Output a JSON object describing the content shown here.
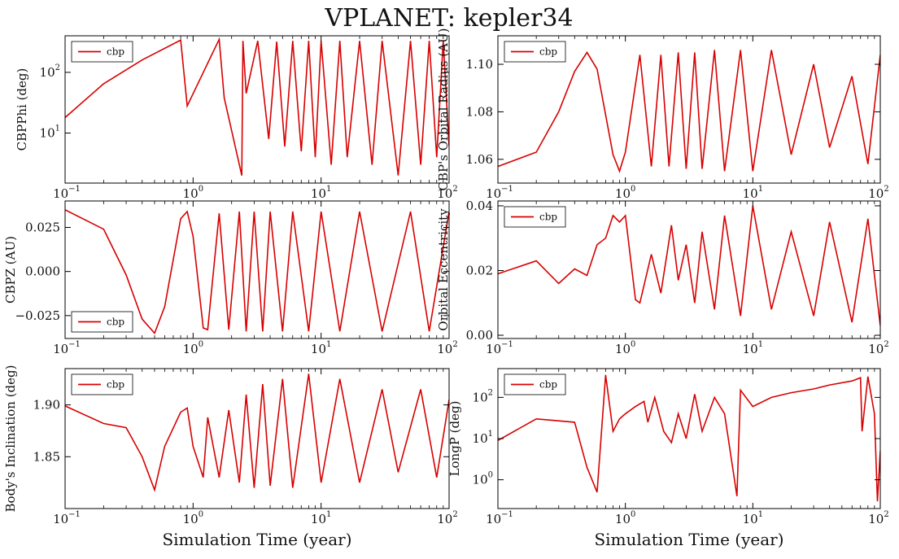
{
  "figure": {
    "title": "VPLANET: kepler34",
    "line_color": "#d80000"
  },
  "chart_data": [
    {
      "type": "line",
      "ylabel": "CBPPhi (deg)",
      "xlabel": "",
      "xscale": "log",
      "yscale": "log",
      "xlim": [
        0.1,
        100
      ],
      "ylim": [
        1.5,
        400
      ],
      "xticks": [
        "10^-1",
        "10^0",
        "10^1",
        "10^2"
      ],
      "yticks": [
        "10^1",
        "10^2"
      ],
      "legend": "cbp",
      "legend_loc": "top-left",
      "series": [
        {
          "name": "cbp",
          "x": [
            0.1,
            0.2,
            0.4,
            0.8,
            0.9,
            1.6,
            1.75,
            2.4,
            2.45,
            2.6,
            3.2,
            3.9,
            4.5,
            5.2,
            6,
            7,
            8,
            9,
            10,
            12,
            14,
            16,
            20,
            25,
            30,
            40,
            50,
            60,
            70,
            80,
            90,
            100
          ],
          "y": [
            18,
            65,
            160,
            340,
            28,
            350,
            38,
            2,
            330,
            45,
            330,
            8,
            320,
            6,
            330,
            5,
            330,
            4,
            330,
            3,
            330,
            4,
            330,
            3,
            330,
            2,
            330,
            3,
            330,
            4,
            330,
            6
          ]
        }
      ]
    },
    {
      "type": "line",
      "ylabel": "CBP's Orbital Radius (AU)",
      "xlabel": "",
      "xscale": "log",
      "yscale": "linear",
      "xlim": [
        0.1,
        100
      ],
      "ylim": [
        1.05,
        1.112
      ],
      "xticks": [
        "10^-1",
        "10^0",
        "10^1",
        "10^2"
      ],
      "yticks": [
        "1.06",
        "1.08",
        "1.10"
      ],
      "legend": "cbp",
      "legend_loc": "top-left",
      "series": [
        {
          "name": "cbp",
          "x": [
            0.1,
            0.2,
            0.3,
            0.4,
            0.5,
            0.6,
            0.8,
            0.9,
            1.0,
            1.3,
            1.6,
            1.9,
            2.2,
            2.6,
            3.0,
            3.5,
            4,
            5,
            6,
            8,
            10,
            14,
            20,
            30,
            40,
            60,
            80,
            100
          ],
          "y": [
            1.057,
            1.063,
            1.08,
            1.097,
            1.105,
            1.098,
            1.062,
            1.055,
            1.063,
            1.104,
            1.057,
            1.104,
            1.057,
            1.105,
            1.056,
            1.105,
            1.056,
            1.106,
            1.055,
            1.106,
            1.055,
            1.106,
            1.062,
            1.1,
            1.065,
            1.095,
            1.058,
            1.104
          ]
        }
      ]
    },
    {
      "type": "line",
      "ylabel": "CBPZ (AU)",
      "xlabel": "",
      "xscale": "log",
      "yscale": "linear",
      "xlim": [
        0.1,
        100
      ],
      "ylim": [
        -0.038,
        0.04
      ],
      "xticks": [
        "10^-1",
        "10^0",
        "10^1",
        "10^2"
      ],
      "yticks": [
        "−0.025",
        "0.000",
        "0.025"
      ],
      "legend": "cbp",
      "legend_loc": "bottom-left",
      "series": [
        {
          "name": "cbp",
          "x": [
            0.1,
            0.2,
            0.3,
            0.4,
            0.5,
            0.6,
            0.8,
            0.9,
            1.0,
            1.2,
            1.3,
            1.6,
            1.9,
            2.3,
            2.6,
            3.0,
            3.5,
            4,
            5,
            6,
            8,
            10,
            14,
            20,
            30,
            50,
            70,
            100
          ],
          "y": [
            0.035,
            0.024,
            -0.002,
            -0.027,
            -0.035,
            -0.02,
            0.03,
            0.034,
            0.02,
            -0.032,
            -0.033,
            0.033,
            -0.033,
            0.034,
            -0.034,
            0.034,
            -0.034,
            0.034,
            -0.034,
            0.034,
            -0.034,
            0.034,
            -0.034,
            0.034,
            -0.034,
            0.034,
            -0.034,
            0.034
          ]
        }
      ]
    },
    {
      "type": "line",
      "ylabel": "Orbital Eccentricity",
      "xlabel": "",
      "xscale": "log",
      "yscale": "linear",
      "xlim": [
        0.1,
        100
      ],
      "ylim": [
        -0.001,
        0.0415
      ],
      "xticks": [
        "10^-1",
        "10^0",
        "10^1",
        "10^2"
      ],
      "yticks": [
        "0.00",
        "0.02",
        "0.04"
      ],
      "legend": "cbp",
      "legend_loc": "top-left",
      "series": [
        {
          "name": "cbp",
          "x": [
            0.1,
            0.2,
            0.3,
            0.4,
            0.5,
            0.6,
            0.7,
            0.8,
            0.9,
            1.0,
            1.2,
            1.3,
            1.6,
            1.9,
            2.3,
            2.6,
            3.0,
            3.5,
            4,
            5,
            6,
            8,
            10,
            14,
            20,
            30,
            40,
            60,
            80,
            100
          ],
          "y": [
            0.019,
            0.023,
            0.016,
            0.0205,
            0.0185,
            0.028,
            0.03,
            0.037,
            0.035,
            0.037,
            0.011,
            0.01,
            0.025,
            0.013,
            0.034,
            0.017,
            0.028,
            0.01,
            0.032,
            0.008,
            0.037,
            0.006,
            0.04,
            0.008,
            0.032,
            0.006,
            0.035,
            0.004,
            0.036,
            0.003
          ]
        }
      ]
    },
    {
      "type": "line",
      "ylabel": "Body's Inclination (deg)",
      "xlabel": "Simulation Time (year)",
      "xscale": "log",
      "yscale": "linear",
      "xlim": [
        0.1,
        100
      ],
      "ylim": [
        1.8,
        1.935
      ],
      "xticks": [
        "10^-1",
        "10^0",
        "10^1",
        "10^2"
      ],
      "yticks": [
        "1.85",
        "1.90"
      ],
      "legend": "cbp",
      "legend_loc": "top-left",
      "series": [
        {
          "name": "cbp",
          "x": [
            0.1,
            0.2,
            0.3,
            0.4,
            0.5,
            0.6,
            0.8,
            0.9,
            1.0,
            1.2,
            1.3,
            1.6,
            1.9,
            2.3,
            2.6,
            3.0,
            3.5,
            4,
            5,
            6,
            8,
            10,
            14,
            20,
            30,
            40,
            60,
            80,
            100
          ],
          "y": [
            1.899,
            1.882,
            1.878,
            1.85,
            1.818,
            1.86,
            1.893,
            1.897,
            1.86,
            1.83,
            1.888,
            1.83,
            1.895,
            1.825,
            1.91,
            1.82,
            1.92,
            1.822,
            1.925,
            1.82,
            1.93,
            1.825,
            1.925,
            1.825,
            1.915,
            1.835,
            1.915,
            1.83,
            1.905
          ]
        }
      ]
    },
    {
      "type": "line",
      "ylabel": "LongP (deg)",
      "xlabel": "Simulation Time (year)",
      "xscale": "log",
      "yscale": "log",
      "xlim": [
        0.1,
        100
      ],
      "ylim": [
        0.2,
        500
      ],
      "xticks": [
        "10^-1",
        "10^0",
        "10^1",
        "10^2"
      ],
      "yticks": [
        "10^0",
        "10^1",
        "10^2"
      ],
      "legend": "cbp",
      "legend_loc": "top-left",
      "series": [
        {
          "name": "cbp",
          "x": [
            0.1,
            0.2,
            0.4,
            0.5,
            0.6,
            0.7,
            0.8,
            0.9,
            1.0,
            1.2,
            1.4,
            1.5,
            1.7,
            2.0,
            2.3,
            2.6,
            3.0,
            3.5,
            4,
            5,
            6,
            7.5,
            8,
            10,
            14,
            20,
            30,
            40,
            60,
            70,
            72,
            80,
            90,
            95,
            100
          ],
          "y": [
            9,
            30,
            25,
            2,
            0.5,
            350,
            15,
            30,
            40,
            60,
            80,
            25,
            100,
            15,
            8,
            40,
            10,
            120,
            15,
            100,
            40,
            0.4,
            150,
            60,
            100,
            130,
            160,
            200,
            250,
            300,
            15,
            320,
            40,
            0.3,
            5
          ]
        }
      ]
    }
  ]
}
